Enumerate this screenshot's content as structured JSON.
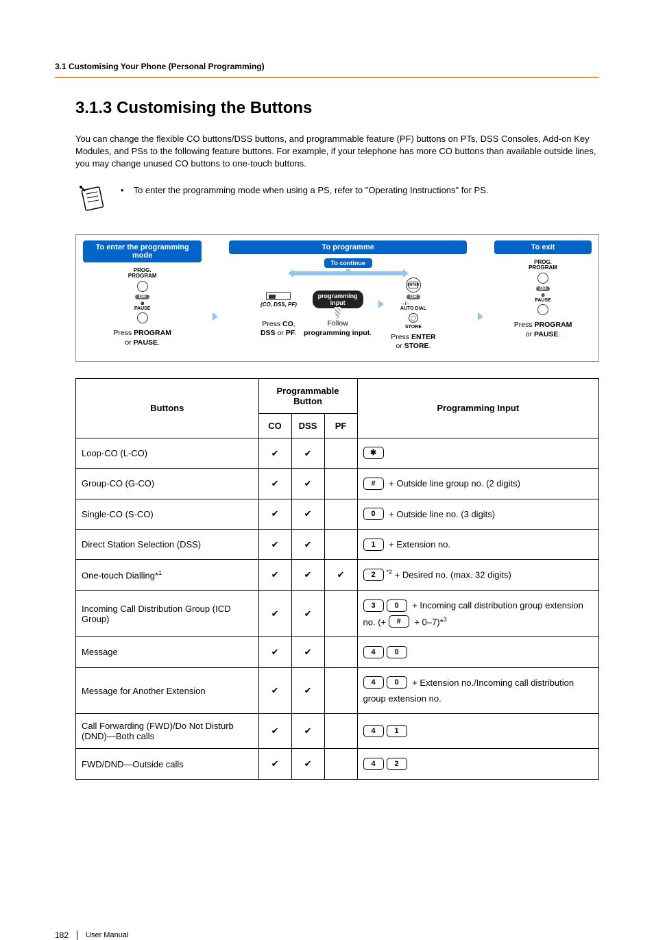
{
  "runningHead": "3.1 Customising Your Phone (Personal Programming)",
  "sectionTitle": "3.1.3    Customising the Buttons",
  "intro": "You can change the flexible CO buttons/DSS buttons, and programmable feature (PF) buttons on PTs, DSS Consoles, Add-on Key Modules, and PSs to the following feature buttons. For example, if your telephone has more CO buttons than available outside lines, you may change unused CO buttons to one-touch buttons.",
  "noteText": "To enter the programming mode when using a PS, refer to \"Operating Instructions\" for PS.",
  "flow": {
    "enterHeader": "To enter the programming mode",
    "programmeHeader": "To programme",
    "exitHeader": "To exit",
    "toContinue": "To continue",
    "progIconTop": "PROG.",
    "progIconSub": "PROGRAM",
    "orLabel": "OR",
    "pauseTop": "⊕",
    "pauseLabel": "PAUSE",
    "caption1a": "Press ",
    "caption1b": "PROGRAM",
    "caption1c": " or ",
    "caption1d": "PAUSE",
    "coLabel": "(CO, DSS, PF)",
    "caption2a": "Press ",
    "caption2b": "CO",
    "caption2c": "DSS",
    "caption2d": "PF",
    "caption2e": ".",
    "darkPill1": "programming",
    "darkPill2": "input",
    "caption3a": "Follow",
    "caption3b": "programming input",
    "enterTop": "ENTER",
    "autoDial": "AUTO DIAL",
    "storeLabel": "STORE",
    "caption4a": "Press ",
    "caption4b": "ENTER",
    "caption4c": " or ",
    "caption4d": "STORE",
    "caption5a": "Press ",
    "caption5b": "PROGRAM",
    "caption5c": " or ",
    "caption5d": "PAUSE"
  },
  "table": {
    "hButtons": "Buttons",
    "hProg": "Programmable Button",
    "hInput": "Programming Input",
    "hCO": "CO",
    "hDSS": "DSS",
    "hPF": "PF",
    "rows": [
      {
        "name": "Loop-CO (L-CO)",
        "co": "✔",
        "dss": "✔",
        "pf": "",
        "keys": [
          {
            "k": "✱"
          }
        ],
        "text": ""
      },
      {
        "name": "Group-CO (G-CO)",
        "co": "✔",
        "dss": "✔",
        "pf": "",
        "keys": [
          {
            "k": "#"
          }
        ],
        "text": " + Outside line group no. (2 digits)"
      },
      {
        "name": "Single-CO (S-CO)",
        "co": "✔",
        "dss": "✔",
        "pf": "",
        "keys": [
          {
            "k": "0"
          }
        ],
        "text": " + Outside line no. (3 digits)"
      },
      {
        "name": "Direct Station Selection (DSS)",
        "co": "✔",
        "dss": "✔",
        "pf": "",
        "keys": [
          {
            "k": "1"
          }
        ],
        "text": " + Extension no."
      },
      {
        "name": "One-touch Dialling*1",
        "nameSup": "1",
        "namePlain": "One-touch Dialling*",
        "co": "✔",
        "dss": "✔",
        "pf": "✔",
        "keys": [
          {
            "k": "2",
            "sup": "*2"
          }
        ],
        "text": " + Desired no. (max. 32 digits)"
      },
      {
        "name": "Incoming Call Distribution Group (ICD Group)",
        "co": "✔",
        "dss": "✔",
        "pf": "",
        "keys": [
          {
            "k": "3"
          },
          {
            "k": "0"
          }
        ],
        "text": " + Incoming call distribution group extension no. (+ ",
        "keys2": [
          {
            "k": "#"
          }
        ],
        "text2": " + 0–7)*",
        "text2Sup": "3"
      },
      {
        "name": "Message",
        "co": "✔",
        "dss": "✔",
        "pf": "",
        "keys": [
          {
            "k": "4"
          },
          {
            "k": "0"
          }
        ],
        "text": ""
      },
      {
        "name": "Message for Another Extension",
        "co": "✔",
        "dss": "✔",
        "pf": "",
        "keys": [
          {
            "k": "4"
          },
          {
            "k": "0"
          }
        ],
        "text": " + Extension no./Incoming call distribution group extension no."
      },
      {
        "name": "Call Forwarding (FWD)/Do Not Disturb (DND)—Both calls",
        "co": "✔",
        "dss": "✔",
        "pf": "",
        "keys": [
          {
            "k": "4"
          },
          {
            "k": "1"
          }
        ],
        "text": ""
      },
      {
        "name": "FWD/DND—Outside calls",
        "co": "✔",
        "dss": "✔",
        "pf": "",
        "keys": [
          {
            "k": "4"
          },
          {
            "k": "2"
          }
        ],
        "text": ""
      }
    ]
  },
  "footer": {
    "page": "182",
    "label": "User Manual"
  },
  "colors": {
    "accent": "#f7941d",
    "flowBlue": "#0064c8"
  }
}
